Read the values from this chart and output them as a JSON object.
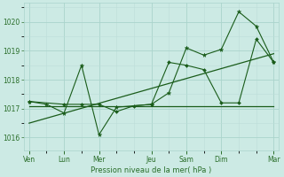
{
  "background_color": "#cceae4",
  "grid_color_major": "#aad4cc",
  "grid_color_minor": "#bdddd8",
  "line_color": "#1a5c1a",
  "text_color": "#2a6e2a",
  "xlabel": "Pression niveau de la mer( hPa )",
  "yticks": [
    1016,
    1017,
    1018,
    1019,
    1020
  ],
  "ylim": [
    1015.55,
    1020.65
  ],
  "xlim": [
    -0.3,
    14.3
  ],
  "xtick_positions": [
    0,
    2,
    4,
    7,
    9,
    11,
    14
  ],
  "xtick_labels": [
    "Ven",
    "Lun",
    "Mer",
    "Jeu",
    "Sam",
    "Dim",
    "Mar"
  ],
  "series1_x": [
    0,
    1,
    2,
    3,
    4,
    5,
    7,
    8,
    9,
    10,
    11,
    12,
    13,
    14
  ],
  "series1_y": [
    1017.25,
    1017.15,
    1016.85,
    1018.5,
    1016.1,
    1017.05,
    1017.15,
    1017.55,
    1019.1,
    1018.85,
    1019.05,
    1020.35,
    1019.85,
    1018.6
  ],
  "series2_x": [
    0,
    2,
    3,
    4,
    5,
    6,
    7,
    8,
    9,
    10,
    11,
    12,
    13,
    14
  ],
  "series2_y": [
    1017.25,
    1017.15,
    1017.15,
    1017.15,
    1016.9,
    1017.1,
    1017.15,
    1018.6,
    1018.5,
    1018.35,
    1017.2,
    1017.2,
    1019.4,
    1018.6
  ],
  "trend1_x": [
    0,
    14
  ],
  "trend1_y": [
    1017.1,
    1017.1
  ],
  "trend2_x": [
    0,
    14
  ],
  "trend2_y": [
    1016.5,
    1018.9
  ]
}
